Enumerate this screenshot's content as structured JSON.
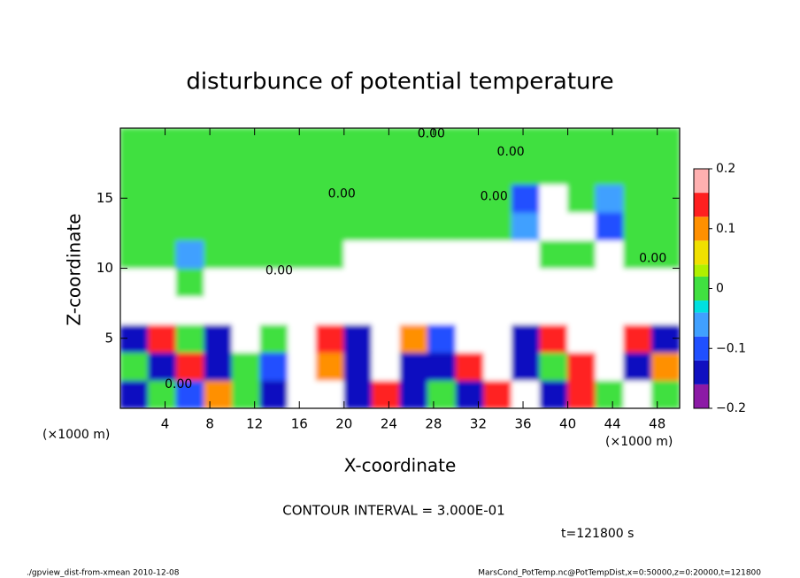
{
  "chart_data": {
    "type": "heatmap",
    "title": "disturbunce of potential temperature",
    "x_label": "X-coordinate",
    "y_label": "Z-coordinate",
    "x_unit_left": "(×1000 m)",
    "x_unit_right": "(×1000 m)",
    "xlim": [
      0,
      50
    ],
    "ylim": [
      0,
      20
    ],
    "xticks": [
      4,
      8,
      12,
      16,
      20,
      24,
      28,
      32,
      36,
      40,
      44,
      48
    ],
    "yticks": [
      5,
      10,
      15
    ],
    "xbins": [
      0,
      2.5,
      5,
      7.5,
      10,
      12.5,
      15,
      17.5,
      20,
      22.5,
      25,
      27.5,
      30,
      32.5,
      35,
      37.5,
      40,
      42.5,
      45,
      47.5,
      50
    ],
    "ybins": [
      0,
      2,
      4,
      6,
      8,
      10,
      12,
      14,
      16,
      18,
      20
    ],
    "z": [
      [
        -0.15,
        0.02,
        -0.1,
        0.12,
        0.01,
        -0.13,
        0.5,
        0.5,
        -0.14,
        0.15,
        -0.12,
        0.01,
        -0.15,
        0.14,
        0.6,
        -0.13,
        0.13,
        0.01,
        0.5,
        0.01
      ],
      [
        0.01,
        -0.12,
        0.13,
        -0.14,
        0.02,
        -0.1,
        0.6,
        0.12,
        -0.15,
        0.5,
        -0.13,
        -0.15,
        0.14,
        0.6,
        -0.12,
        0.01,
        0.14,
        0.5,
        -0.13,
        0.12
      ],
      [
        -0.14,
        0.15,
        0.02,
        -0.12,
        0.5,
        0.02,
        0.8,
        0.14,
        -0.13,
        0.6,
        0.12,
        -0.1,
        0.5,
        0.7,
        -0.14,
        0.13,
        0.5,
        0.7,
        0.14,
        -0.12
      ],
      [
        0.4,
        0.5,
        0.6,
        0.7,
        0.9,
        1.2,
        1.0,
        0.8,
        0.9,
        0.7,
        0.6,
        0.8,
        0.9,
        0.7,
        0.8,
        0.9,
        0.6,
        0.7,
        0.8,
        0.5
      ],
      [
        0.3,
        0.4,
        0.02,
        0.5,
        0.6,
        0.4,
        0.3,
        0.5,
        0.6,
        0.4,
        0.7,
        0.5,
        0.6,
        0.5,
        0.4,
        0.5,
        0.6,
        0.4,
        0.5,
        0.3
      ],
      [
        0.01,
        0.02,
        -0.05,
        0.01,
        0.02,
        0.01,
        -0.01,
        0.02,
        0.4,
        0.3,
        0.5,
        0.4,
        0.3,
        0.4,
        0.3,
        0.02,
        0.01,
        0.3,
        0.01,
        0.02
      ],
      [
        0.01,
        0,
        0.01,
        0,
        0.01,
        0,
        0.01,
        0,
        0.01,
        0,
        0.01,
        0,
        0.01,
        0,
        -0.05,
        0.4,
        0.5,
        -0.1,
        0,
        0.01
      ],
      [
        0,
        0.01,
        0,
        0,
        0.01,
        0,
        0,
        0,
        0.01,
        0,
        0,
        0.01,
        0,
        0,
        -0.1,
        -0.5,
        0.01,
        -0.05,
        0,
        0
      ],
      [
        0,
        0,
        0,
        0,
        0,
        0,
        0,
        0,
        0,
        0,
        0,
        0,
        0,
        0,
        0,
        0,
        0,
        0,
        0,
        0
      ],
      [
        0,
        0,
        0,
        0,
        0,
        0,
        0,
        0,
        0,
        0,
        0,
        0,
        0,
        0,
        0,
        0,
        0,
        0,
        0,
        0
      ]
    ],
    "colorbar": {
      "clim": [
        -0.2,
        0.2
      ],
      "levels": [
        -0.2,
        -0.16,
        -0.12,
        -0.08,
        -0.04,
        -0.02,
        0.02,
        0.04,
        0.08,
        0.12,
        0.16,
        0.2
      ],
      "colors": [
        "#8c1aa6",
        "#1010c0",
        "#2050ff",
        "#40a0ff",
        "#00e0e0",
        "#40e040",
        "#b0f000",
        "#f0e000",
        "#ff9000",
        "#ff2020",
        "#ffb0b0"
      ],
      "over_color": "#ffffff",
      "under_color": "#ffffff",
      "ticks": [
        {
          "value": -0.2,
          "label": "−0.2"
        },
        {
          "value": -0.1,
          "label": "−0.1"
        },
        0,
        0.1,
        0.2
      ]
    },
    "annotations": [
      {
        "text": "0.00",
        "x": 27.8,
        "y": 19.6
      },
      {
        "text": "0.00",
        "x": 34.9,
        "y": 18.3
      },
      {
        "text": "0.00",
        "x": 19.8,
        "y": 15.3
      },
      {
        "text": "0.00",
        "x": 33.4,
        "y": 15.1
      },
      {
        "text": "0.00",
        "x": 14.2,
        "y": 9.8
      },
      {
        "text": "0.00",
        "x": 47.6,
        "y": 10.7
      },
      {
        "text": "0.00",
        "x": 5.2,
        "y": 1.7
      }
    ],
    "contour_interval": "CONTOUR INTERVAL = 3.000E-01",
    "time_label": "t=121800 s",
    "footer_left": "./gpview_dist-from-xmean  2010-12-08",
    "footer_right": "MarsCond_PotTemp.nc@PotTempDist,x=0:50000,z=0:20000,t=121800"
  }
}
